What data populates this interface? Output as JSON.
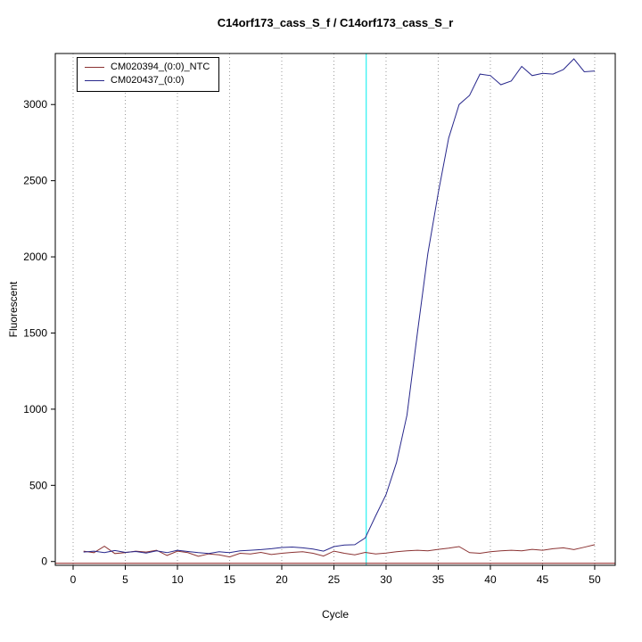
{
  "chart_data": {
    "type": "line",
    "title": "C14orf173_cass_S_f / C14orf173_cass_S_r",
    "xlabel": "Cycle",
    "ylabel": "Fluorescent",
    "xlim": [
      -1.71,
      51.97
    ],
    "ylim": [
      -25,
      3335
    ],
    "x_ticks": [
      0,
      5,
      10,
      15,
      20,
      25,
      30,
      35,
      40,
      45,
      50
    ],
    "y_ticks": [
      0,
      500,
      1000,
      1500,
      2000,
      2500,
      3000
    ],
    "grid": "vertical-dotted",
    "legend_position": "top-left",
    "threshold_cycle": 28.1,
    "baseline_value": -12,
    "x": [
      1,
      2,
      3,
      4,
      5,
      6,
      7,
      8,
      9,
      10,
      11,
      12,
      13,
      14,
      15,
      16,
      17,
      18,
      19,
      20,
      21,
      22,
      23,
      24,
      25,
      26,
      27,
      28,
      29,
      30,
      31,
      32,
      33,
      34,
      35,
      36,
      37,
      38,
      39,
      40,
      41,
      42,
      43,
      44,
      45,
      46,
      47,
      48,
      49,
      50
    ],
    "series": [
      {
        "name": "CM020394_(0:0)_NTC",
        "color": "#8B3333",
        "values": [
          68,
          58,
          100,
          52,
          58,
          68,
          62,
          74,
          40,
          68,
          58,
          34,
          50,
          44,
          30,
          54,
          50,
          60,
          46,
          54,
          60,
          64,
          54,
          36,
          68,
          54,
          44,
          60,
          50,
          56,
          64,
          70,
          74,
          70,
          80,
          88,
          98,
          58,
          54,
          64,
          70,
          74,
          70,
          80,
          74,
          84,
          90,
          78,
          94,
          110
        ]
      },
      {
        "name": "CM020437_(0:0)",
        "color": "#28288C",
        "values": [
          62,
          68,
          58,
          72,
          60,
          66,
          55,
          70,
          58,
          74,
          66,
          58,
          52,
          64,
          58,
          70,
          74,
          78,
          84,
          92,
          95,
          90,
          82,
          68,
          98,
          108,
          110,
          155,
          300,
          440,
          650,
          960,
          1500,
          2020,
          2420,
          2780,
          3000,
          3060,
          3200,
          3190,
          3130,
          3155,
          3250,
          3190,
          3205,
          3200,
          3230,
          3300,
          3215,
          3220
        ]
      }
    ],
    "colors": {
      "grid": "#999999",
      "threshold_line": "#00EEEE",
      "baseline": "#8B1A1A",
      "axis": "#000000"
    }
  }
}
